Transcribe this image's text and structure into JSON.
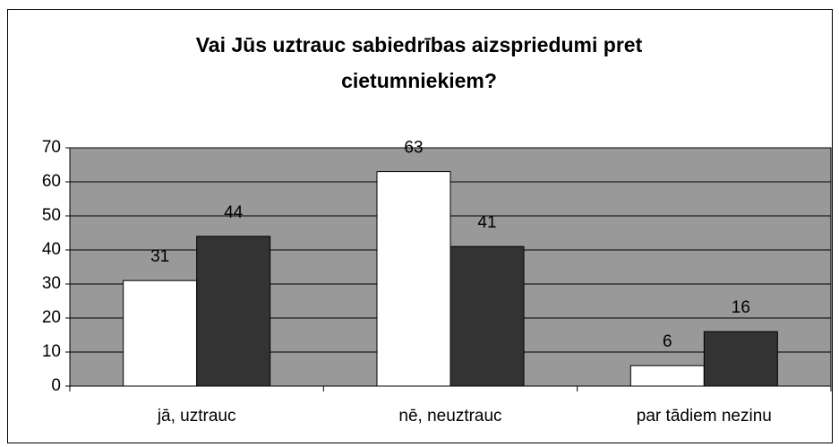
{
  "chart_data": {
    "type": "bar",
    "title": "Vai Jūs uztrauc sabiedrības aizspriedumi pret cietumniekiem?",
    "categories": [
      "jā, uztrauc",
      "nē, neuztrauc",
      "par tādiem nezinu"
    ],
    "series": [
      {
        "color": "#ffffff",
        "values": [
          31,
          63,
          6
        ]
      },
      {
        "color": "#333333",
        "values": [
          44,
          41,
          16
        ]
      }
    ],
    "ylim": [
      0,
      70
    ],
    "yticks": [
      0,
      10,
      20,
      30,
      40,
      50,
      60,
      70
    ],
    "grid": true,
    "plot_background": "#999999"
  }
}
